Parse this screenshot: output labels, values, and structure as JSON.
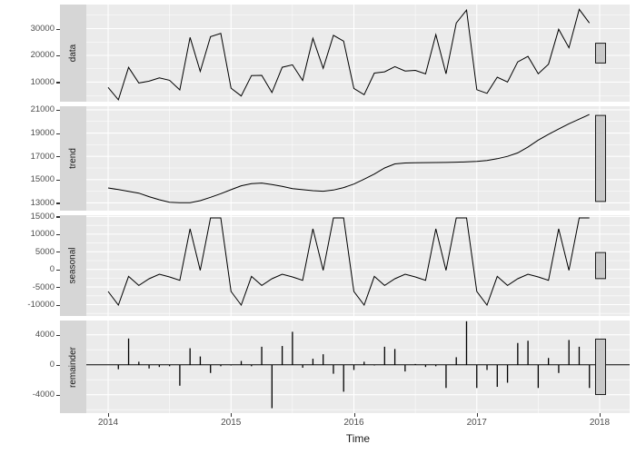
{
  "colors": {
    "panel_bg": "#ebebeb",
    "strip_bg": "#d6d6d6",
    "grid_major": "#ffffff",
    "grid_minor": "#f5f5f5",
    "series_line": "#000000",
    "axis_text": "#4d4d4d",
    "scale_bar_fill": "#c9c9c9",
    "scale_bar_stroke": "#1a1a1a"
  },
  "axis": {
    "xlabel": "Time",
    "x_tick_labels": [
      "2014",
      "2015",
      "2016",
      "2017",
      "2018"
    ]
  },
  "chart_data": {
    "type": "line",
    "title": "",
    "description": "Seasonal decomposition of a monthly time series (data = trend + seasonal + remainder), Jan 2014 - Dec 2017, faceted into four panels with a common Time axis and grey relative-scale bars at right",
    "xlabel": "Time",
    "x_tick_years": [
      2014,
      2015,
      2016,
      2017,
      2018
    ],
    "frequency": 12,
    "start": "2014-01",
    "end": "2017-12",
    "scale_bar_data_span": 7400,
    "panels": [
      {
        "label": "data",
        "plot": "line",
        "yticks": [
          10000,
          20000,
          30000
        ],
        "ylim": [
          2700,
          38990
        ],
        "values": [
          8010,
          3400,
          15510,
          9690,
          10370,
          11600,
          10710,
          7120,
          26720,
          14030,
          26980,
          28190,
          7760,
          4830,
          12470,
          12550,
          6110,
          15550,
          16480,
          10640,
          26360,
          15140,
          27500,
          25310,
          7650,
          5300,
          13400,
          13850,
          15790,
          14160,
          14400,
          13070,
          27780,
          13120,
          32100,
          36920,
          7190,
          5810,
          11870,
          10050,
          17540,
          19630,
          13150,
          16710,
          29760,
          22840,
          37200,
          32100
        ]
      },
      {
        "label": "trend",
        "plot": "line",
        "yticks": [
          13000,
          15000,
          17000,
          19000,
          21000
        ],
        "ylim": [
          12330,
          21310
        ],
        "values": [
          14280,
          14140,
          13990,
          13840,
          13530,
          13270,
          13060,
          13010,
          13010,
          13190,
          13480,
          13790,
          14130,
          14470,
          14650,
          14700,
          14570,
          14420,
          14230,
          14130,
          14050,
          14000,
          14100,
          14310,
          14620,
          15040,
          15480,
          16000,
          16350,
          16430,
          16450,
          16460,
          16470,
          16480,
          16500,
          16520,
          16560,
          16650,
          16800,
          17000,
          17300,
          17800,
          18400,
          18900,
          19350,
          19800,
          20200,
          20600
        ]
      },
      {
        "label": "seasonal",
        "plot": "line",
        "yticks": [
          -10000,
          -5000,
          0,
          5000,
          10000,
          15000
        ],
        "ylim": [
          -13220,
          15380
        ],
        "values": [
          -6270,
          -10140,
          -1980,
          -4550,
          -2660,
          -1370,
          -2150,
          -3090,
          11510,
          -260,
          14600,
          14600,
          -6270,
          -10140,
          -1980,
          -4550,
          -2660,
          -1370,
          -2150,
          -3090,
          11510,
          -260,
          14600,
          14600,
          -6270,
          -10140,
          -1980,
          -4550,
          -2660,
          -1370,
          -2150,
          -3090,
          11510,
          -260,
          14600,
          14600,
          -6270,
          -10140,
          -1980,
          -4550,
          -2660,
          -1370,
          -2150,
          -3090,
          11510,
          -260,
          14600,
          14600
        ]
      },
      {
        "label": "remainder",
        "plot": "segments",
        "yticks": [
          -4000,
          0,
          4000
        ],
        "ylim": [
          -6460,
          5900
        ],
        "values": [
          0,
          -600,
          3500,
          400,
          -500,
          -300,
          -200,
          -2800,
          2200,
          1100,
          -1100,
          -200,
          -100,
          500,
          -200,
          2400,
          -5800,
          2500,
          4400,
          -400,
          800,
          1400,
          -1200,
          -3600,
          -700,
          400,
          -100,
          2400,
          2100,
          -900,
          100,
          -300,
          -200,
          -3100,
          1000,
          5800,
          -3100,
          -700,
          -2950,
          -2400,
          2900,
          3200,
          -3100,
          900,
          -1100,
          3300,
          2400,
          -3100
        ]
      }
    ]
  }
}
